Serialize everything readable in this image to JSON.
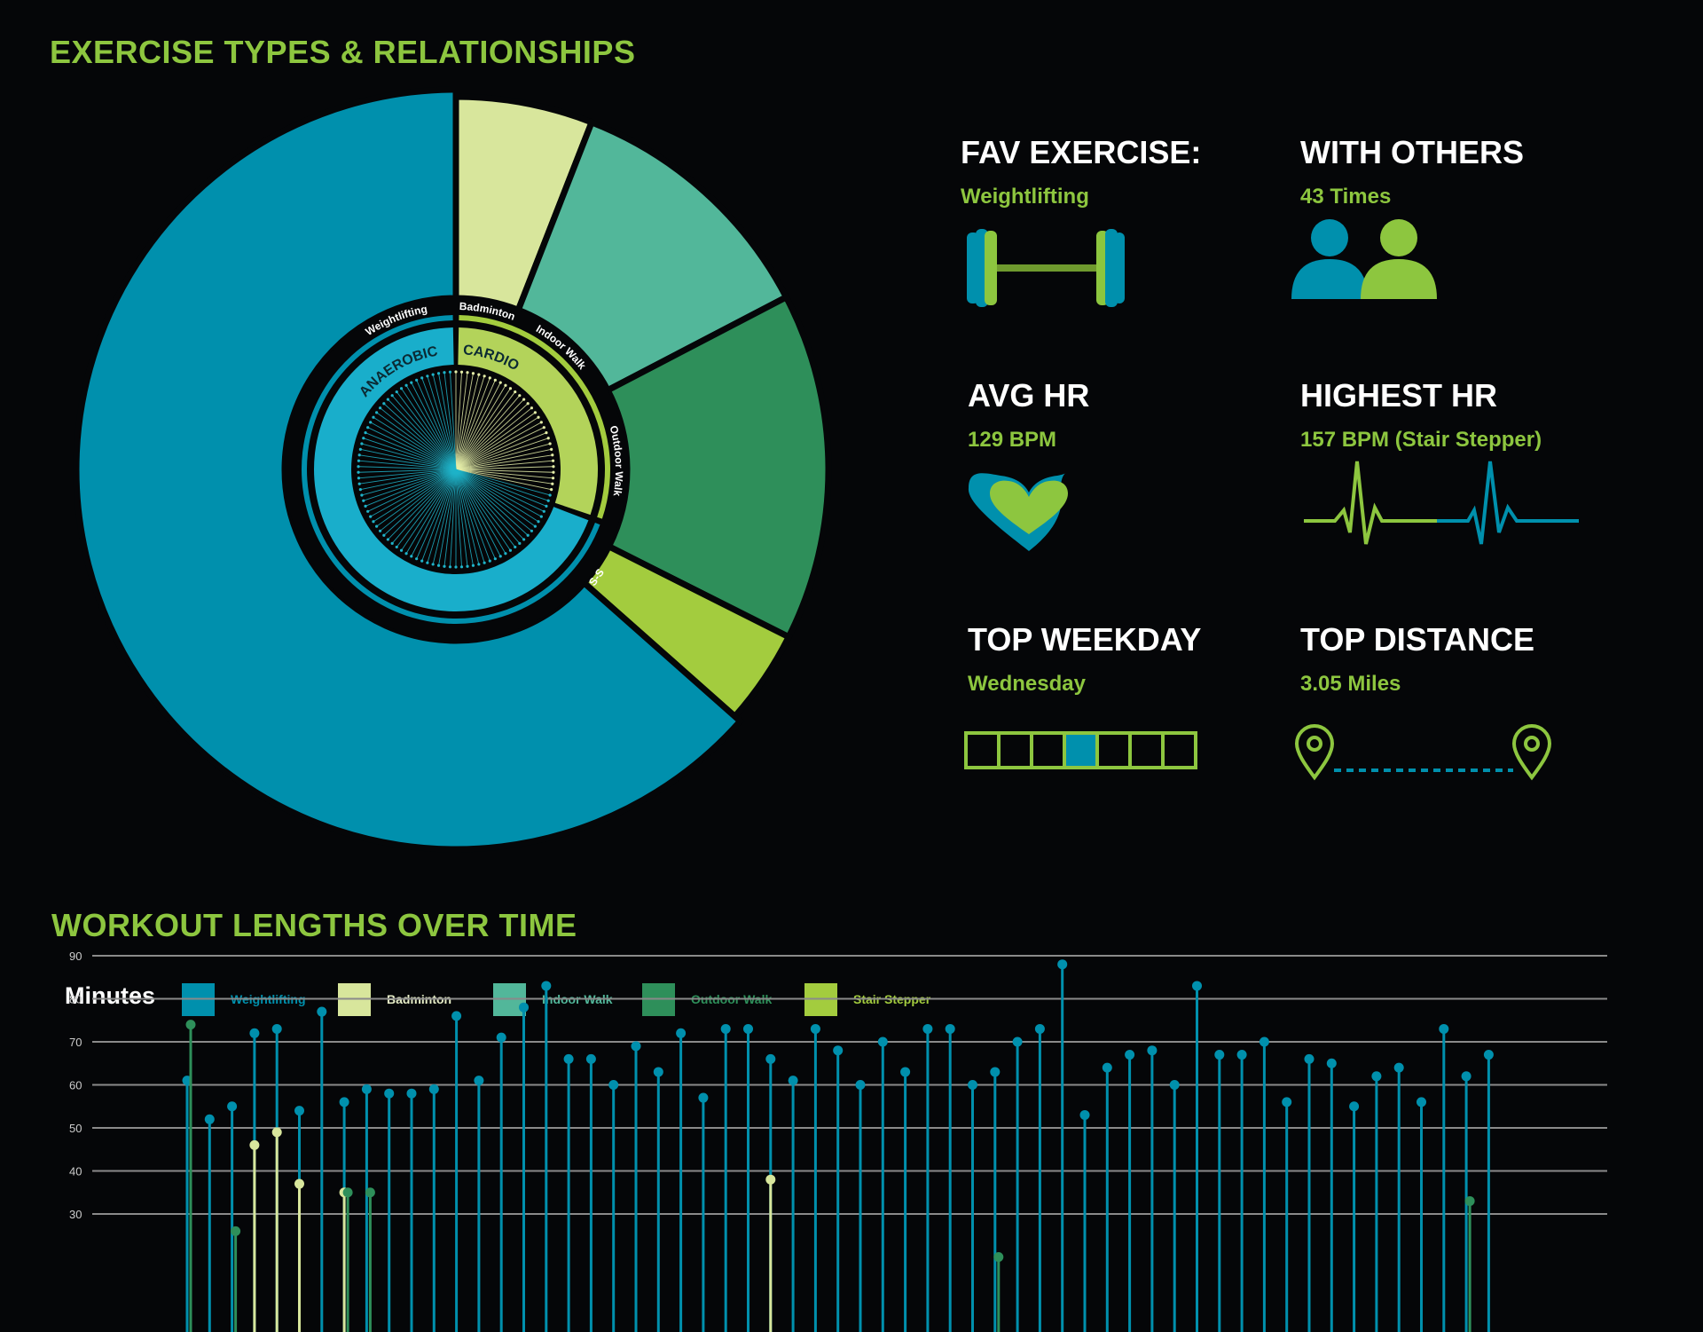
{
  "sections": {
    "exercise_types_title": "EXERCISE TYPES & RELATIONSHIPS",
    "workout_lengths_title": "WORKOUT LENGTHS OVER TIME"
  },
  "colors": {
    "weightlifting": "#0090ad",
    "badminton": "#d8e69c",
    "indoor_walk": "#52b79a",
    "outdoor_walk": "#2e8f5a",
    "stair_stepper": "#a3cc3e",
    "accent_green": "#8dc63f",
    "grid": "#8a8a8a"
  },
  "stats": {
    "fav_exercise": {
      "label": "FAV EXERCISE:",
      "value": "Weightlifting"
    },
    "with_others": {
      "label": "WITH OTHERS",
      "value": "43 Times"
    },
    "avg_hr": {
      "label": "AVG HR",
      "value": "129 BPM"
    },
    "highest_hr": {
      "label": "HIGHEST HR",
      "value": "157 BPM (Stair Stepper)"
    },
    "top_weekday": {
      "label": "TOP WEEKDAY",
      "value": "Wednesday",
      "highlighted_day_index": 3,
      "days_shown": 7
    },
    "top_distance": {
      "label": "TOP DISTANCE",
      "value": "3.05 Miles"
    }
  },
  "icons": {
    "fav_exercise": "barbell-icon",
    "with_others": "people-icon",
    "avg_hr": "heart-icon",
    "highest_hr": "heartbeat-line-icon",
    "top_weekday": "week-calendar-icon",
    "top_distance": "route-pins-icon"
  },
  "chart_data": [
    {
      "type": "pie",
      "title": "",
      "categories": [
        "Weightlifting",
        "Badminton",
        "Indoor Walk",
        "Outdoor Walk",
        "Stair Stepper"
      ],
      "values": [
        69.5,
        6.5,
        12.5,
        16.5,
        4.5
      ],
      "slice_labels": [
        "Weightlifting",
        "Badminton",
        "Indoor Walk",
        "Outdoor Walk",
        "S-S"
      ],
      "inner_ring": {
        "categories": [
          "ANAEROBIC",
          "CARDIO"
        ],
        "values": [
          69.5,
          30.5
        ]
      },
      "center_radial_lines": {
        "total": 106,
        "cardio": 31
      }
    },
    {
      "type": "scatter",
      "title": "",
      "ylabel": "Minutes",
      "ylim": [
        0,
        90
      ],
      "yticks": [
        30,
        40,
        50,
        60,
        70,
        80,
        90
      ],
      "grid": true,
      "legend_position": "top",
      "series": [
        {
          "name": "Weightlifting",
          "values": [
            [
              1,
              61
            ],
            [
              2,
              52
            ],
            [
              3,
              55
            ],
            [
              4,
              72
            ],
            [
              5,
              73
            ],
            [
              6,
              54
            ],
            [
              7,
              77
            ],
            [
              8,
              56
            ],
            [
              9,
              59
            ],
            [
              10,
              58
            ],
            [
              11,
              58
            ],
            [
              12,
              59
            ],
            [
              13,
              76
            ],
            [
              14,
              61
            ],
            [
              15,
              71
            ],
            [
              16,
              78
            ],
            [
              17,
              83
            ],
            [
              18,
              66
            ],
            [
              19,
              66
            ],
            [
              20,
              60
            ],
            [
              21,
              69
            ],
            [
              22,
              63
            ],
            [
              23,
              72
            ],
            [
              24,
              57
            ],
            [
              25,
              73
            ],
            [
              26,
              73
            ],
            [
              27,
              66
            ],
            [
              28,
              61
            ],
            [
              29,
              73
            ],
            [
              30,
              68
            ],
            [
              31,
              60
            ],
            [
              32,
              70
            ],
            [
              33,
              63
            ],
            [
              34,
              73
            ],
            [
              35,
              73
            ],
            [
              36,
              60
            ],
            [
              37,
              63
            ],
            [
              38,
              70
            ],
            [
              39,
              73
            ],
            [
              40,
              88
            ],
            [
              41,
              53
            ],
            [
              42,
              64
            ],
            [
              43,
              67
            ],
            [
              44,
              68
            ],
            [
              45,
              60
            ],
            [
              46,
              83
            ],
            [
              47,
              67
            ],
            [
              48,
              67
            ],
            [
              49,
              70
            ],
            [
              50,
              56
            ],
            [
              51,
              66
            ],
            [
              52,
              65
            ],
            [
              53,
              55
            ],
            [
              54,
              62
            ],
            [
              55,
              64
            ],
            [
              56,
              56
            ],
            [
              57,
              73
            ],
            [
              58,
              62
            ],
            [
              59,
              67
            ]
          ]
        },
        {
          "name": "Badminton",
          "values": [
            [
              4,
              46
            ],
            [
              5,
              49
            ],
            [
              6,
              37
            ],
            [
              8,
              35
            ],
            [
              27,
              38
            ]
          ]
        },
        {
          "name": "Indoor Walk",
          "values": []
        },
        {
          "name": "Outdoor Walk",
          "values": [
            [
              1,
              74
            ],
            [
              3,
              26
            ],
            [
              8,
              35
            ],
            [
              9,
              35
            ],
            [
              37,
              20
            ],
            [
              58,
              33
            ]
          ]
        },
        {
          "name": "Stair Stepper",
          "values": []
        }
      ]
    }
  ],
  "ring_labels": {
    "weightlifting": "Weightlifting",
    "badminton": "Badminton",
    "indoor_walk": "Indoor Walk",
    "outdoor_walk": "Outdoor Walk",
    "stair_stepper": "S-S",
    "anaerobic": "ANAEROBIC",
    "cardio": "CARDIO"
  },
  "legend": {
    "title": "Minutes",
    "items": [
      {
        "label": "Weightlifting",
        "color": "#0090ad"
      },
      {
        "label": "Badminton",
        "color": "#d8e69c"
      },
      {
        "label": "Indoor Walk",
        "color": "#52b79a"
      },
      {
        "label": "Outdoor Walk",
        "color": "#2e8f5a"
      },
      {
        "label": "Stair Stepper",
        "color": "#a3cc3e"
      }
    ]
  }
}
